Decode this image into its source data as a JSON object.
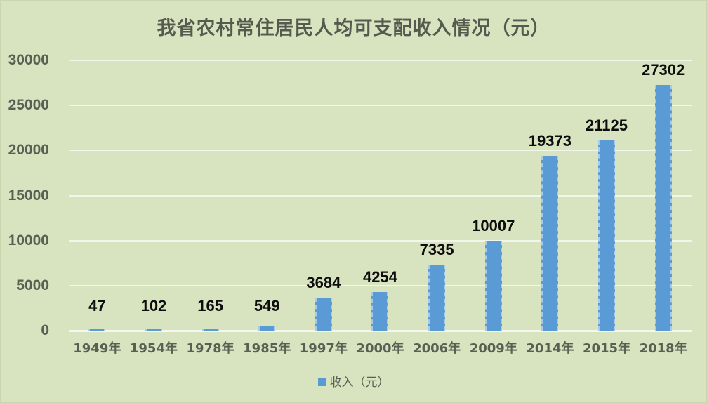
{
  "chart_data": {
    "type": "bar",
    "title": "我省农村常住居民人均可支配收入情况（元）",
    "xlabel": "",
    "ylabel": "",
    "ylim": [
      0,
      30000
    ],
    "yticks": [
      0,
      5000,
      10000,
      15000,
      20000,
      25000,
      30000
    ],
    "grid": true,
    "legend_position": "bottom",
    "categories": [
      "1949年",
      "1954年",
      "1978年",
      "1985年",
      "1997年",
      "2000年",
      "2006年",
      "2009年",
      "2014年",
      "2015年",
      "2018年"
    ],
    "series": [
      {
        "name": "收入（元）",
        "color": "#5b9bd5",
        "values": [
          47,
          102,
          165,
          549,
          3684,
          4254,
          7335,
          10007,
          19373,
          21125,
          27302
        ]
      }
    ],
    "data_labels": [
      "47",
      "102",
      "165",
      "549",
      "3684",
      "4254",
      "7335",
      "10007",
      "19373",
      "21125",
      "27302"
    ]
  },
  "legend": {
    "label": "收入（元）"
  }
}
